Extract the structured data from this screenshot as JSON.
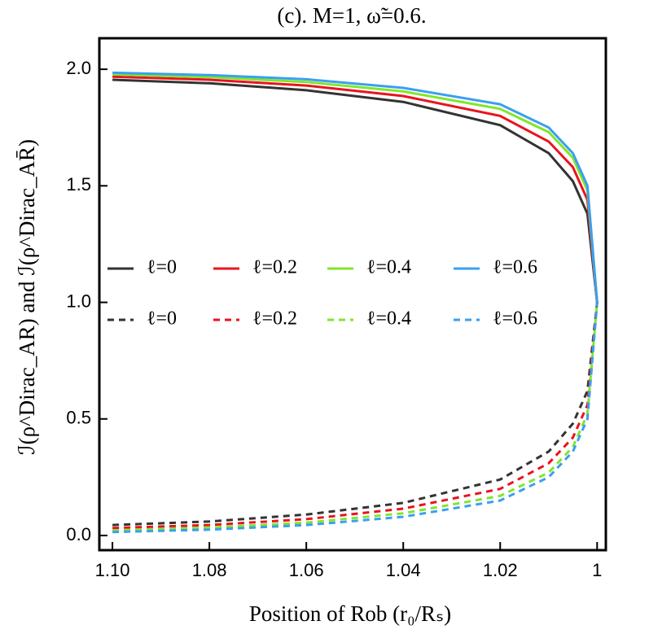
{
  "chart_data": {
    "type": "line",
    "title": "(c). M=1, ω̃=0.6.",
    "xlabel": "Position of Rob (r₀/Rₛ)",
    "ylabel": "ℐ(ρ^Dirac_AR) and ℐ(ρ^Dirac_AR̄)",
    "x": [
      1.1,
      1.08,
      1.06,
      1.04,
      1.02,
      1.01,
      1.005,
      1.002,
      1.0
    ],
    "xlim": [
      1.1027,
      0.9982
    ],
    "ylim": [
      -0.063,
      2.133
    ],
    "xticks": [
      {
        "value": 1.1,
        "label": "1.10"
      },
      1.08,
      1.06,
      1.04,
      1.02,
      1
    ],
    "yticks": [
      {
        "value": 0,
        "label": "0.0"
      },
      0.5,
      {
        "value": 1,
        "label": "1.0"
      },
      1.5,
      {
        "value": 2,
        "label": "2.0"
      }
    ],
    "series": [
      {
        "name": "ℓ=0",
        "color": "#333333",
        "dash": false,
        "values": [
          1.955,
          1.94,
          1.91,
          1.86,
          1.76,
          1.64,
          1.52,
          1.38,
          1.0
        ]
      },
      {
        "name": "ℓ=0.2",
        "color": "#e8141e",
        "dash": false,
        "values": [
          1.968,
          1.955,
          1.93,
          1.885,
          1.8,
          1.69,
          1.58,
          1.44,
          1.0
        ]
      },
      {
        "name": "ℓ=0.4",
        "color": "#80e62a",
        "dash": false,
        "values": [
          1.978,
          1.966,
          1.945,
          1.905,
          1.83,
          1.73,
          1.62,
          1.48,
          1.0
        ]
      },
      {
        "name": "ℓ=0.6",
        "color": "#3a9ff0",
        "dash": false,
        "values": [
          1.985,
          1.975,
          1.957,
          1.92,
          1.85,
          1.75,
          1.64,
          1.5,
          1.0
        ]
      },
      {
        "name": "ℓ=0",
        "color": "#333333",
        "dash": true,
        "values": [
          0.045,
          0.06,
          0.09,
          0.14,
          0.24,
          0.36,
          0.48,
          0.62,
          1.0
        ]
      },
      {
        "name": "ℓ=0.2",
        "color": "#e8141e",
        "dash": true,
        "values": [
          0.032,
          0.045,
          0.07,
          0.115,
          0.2,
          0.31,
          0.42,
          0.56,
          1.0
        ]
      },
      {
        "name": "ℓ=0.4",
        "color": "#80e62a",
        "dash": true,
        "values": [
          0.022,
          0.034,
          0.055,
          0.095,
          0.17,
          0.27,
          0.38,
          0.52,
          1.0
        ]
      },
      {
        "name": "ℓ=0.6",
        "color": "#3a9ff0",
        "dash": true,
        "values": [
          0.015,
          0.025,
          0.045,
          0.08,
          0.15,
          0.25,
          0.36,
          0.5,
          1.0
        ]
      }
    ]
  }
}
